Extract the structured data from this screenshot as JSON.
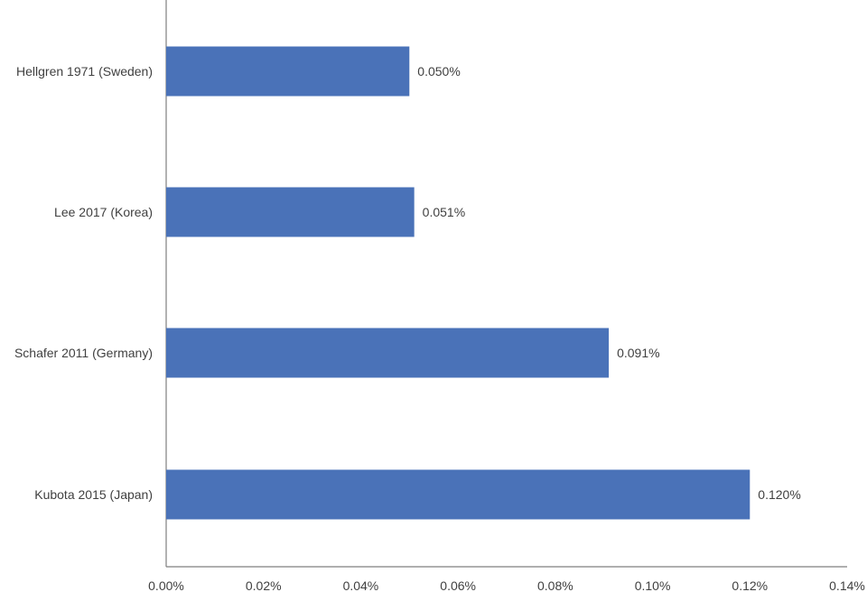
{
  "chart_data": {
    "type": "bar",
    "orientation": "horizontal",
    "categories": [
      "Hellgren 1971 (Sweden)",
      "Lee 2017 (Korea)",
      "Schafer 2011 (Germany)",
      "Kubota 2015 (Japan)"
    ],
    "values": [
      0.05,
      0.051,
      0.091,
      0.12
    ],
    "data_labels": [
      "0.050%",
      "0.051%",
      "0.091%",
      "0.120%"
    ],
    "x_ticks": [
      0,
      0.02,
      0.04,
      0.06,
      0.08,
      0.1,
      0.12,
      0.14
    ],
    "x_tick_labels": [
      "0.00%",
      "0.02%",
      "0.04%",
      "0.06%",
      "0.08%",
      "0.10%",
      "0.12%",
      "0.14%"
    ],
    "xlim": [
      0,
      0.14
    ],
    "grid": false,
    "bar_color": "#4a72b8",
    "axis_color": "#7f7f7f"
  }
}
